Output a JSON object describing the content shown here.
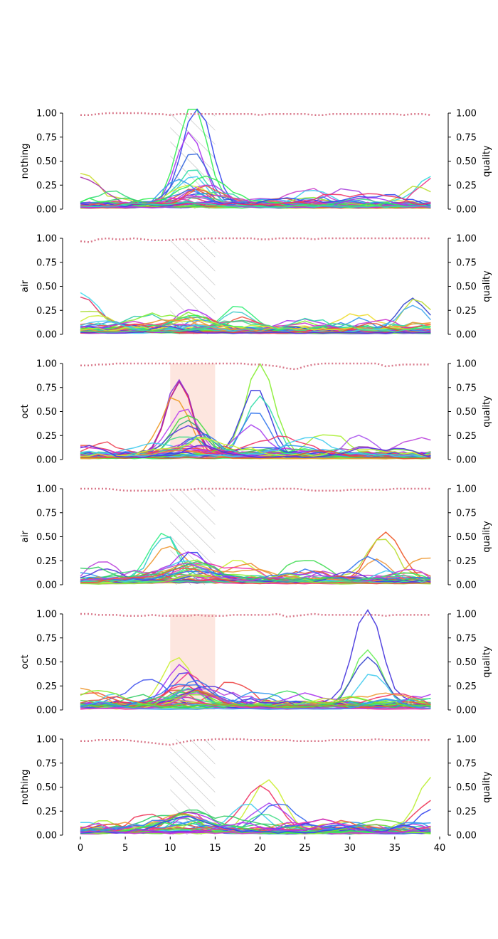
{
  "chart_data": {
    "type": "line",
    "layout": "stacked-subplots",
    "n_series": 40,
    "x_range": [
      0,
      40
    ],
    "x_ticks": [
      0,
      5,
      10,
      15,
      20,
      25,
      30,
      35,
      40
    ],
    "left_ylim": [
      0,
      1
    ],
    "right_ylim": [
      0,
      1
    ],
    "y_ticks": [
      "0.00",
      "0.25",
      "0.50",
      "0.75",
      "1.00"
    ],
    "right_axis_label": "quality",
    "quality_line_color": "#d9798b",
    "hatch_color": "#bbbbbb",
    "highlight_color": "#fde6df",
    "panels": [
      {
        "ylabel": "nothing",
        "stimulus": {
          "x0": 10,
          "x1": 15,
          "style": "hatched"
        },
        "quality": [
          0.98,
          0.98,
          0.99,
          1.0,
          1.0,
          1.0,
          1.0,
          1.0,
          0.99,
          0.99,
          0.98,
          0.99,
          0.99,
          0.99,
          0.99,
          0.99,
          0.99,
          0.99,
          0.99,
          0.99,
          0.98,
          0.99,
          0.99,
          0.99,
          0.99,
          0.99,
          0.98,
          0.98,
          0.99,
          0.99,
          0.99,
          0.99,
          0.99,
          0.99,
          0.99,
          0.99,
          0.98,
          0.99,
          0.99,
          0.98
        ],
        "peaks": [
          {
            "center": 12.5,
            "width": 1.6,
            "amp": 1.05,
            "color": "#33ee55"
          },
          {
            "center": 13.0,
            "width": 1.6,
            "amp": 1.05,
            "color": "#3344ee"
          },
          {
            "center": 12.2,
            "width": 1.5,
            "amp": 0.75,
            "color": "#aa33ee"
          },
          {
            "center": 12.5,
            "width": 1.5,
            "amp": 0.55,
            "color": "#3366dd"
          },
          {
            "center": 12.5,
            "width": 1.6,
            "amp": 0.36,
            "color": "#33ddaa"
          },
          {
            "center": 12.5,
            "width": 1.5,
            "amp": 0.29,
            "color": "#44ccee"
          },
          {
            "center": 12.5,
            "width": 1.8,
            "amp": 0.18,
            "color": "#dd5533"
          },
          {
            "center": 0.0,
            "width": 2.0,
            "amp": 0.3,
            "color": "#ccdd33"
          },
          {
            "center": 0.0,
            "width": 2.0,
            "amp": 0.28,
            "color": "#aa33aa"
          },
          {
            "center": 39.0,
            "width": 1.5,
            "amp": 0.3,
            "color": "#33dddd"
          },
          {
            "center": 39.0,
            "width": 1.5,
            "amp": 0.25,
            "color": "#ee3388"
          },
          {
            "center": 29.5,
            "width": 2.0,
            "amp": 0.18,
            "color": "#aa44dd"
          },
          {
            "center": 25.5,
            "width": 2.0,
            "amp": 0.16,
            "color": "#cc44cc"
          },
          {
            "center": 37.5,
            "width": 1.8,
            "amp": 0.21,
            "color": "#bbdd33"
          },
          {
            "center": 3.5,
            "width": 2.0,
            "amp": 0.13,
            "color": "#33dd77"
          }
        ]
      },
      {
        "ylabel": "air",
        "stimulus": {
          "x0": 10,
          "x1": 15,
          "style": "hatched"
        },
        "quality": [
          0.97,
          0.96,
          0.99,
          1.0,
          0.99,
          0.99,
          1.0,
          0.99,
          0.98,
          0.98,
          0.98,
          0.99,
          0.99,
          0.99,
          1.0,
          1.0,
          1.0,
          1.0,
          1.0,
          1.0,
          0.99,
          0.99,
          1.0,
          1.0,
          1.0,
          1.0,
          0.99,
          1.0,
          1.0,
          1.0,
          1.0,
          1.0,
          1.0,
          1.0,
          1.0,
          1.0,
          1.0,
          1.0,
          1.0,
          1.0
        ],
        "peaks": [
          {
            "center": 0.0,
            "width": 2.0,
            "amp": 0.37,
            "color": "#44ddee"
          },
          {
            "center": 0.0,
            "width": 2.0,
            "amp": 0.32,
            "color": "#dd3366"
          },
          {
            "center": 12.5,
            "width": 2.0,
            "amp": 0.2,
            "color": "#aa33ee"
          },
          {
            "center": 17.5,
            "width": 1.8,
            "amp": 0.27,
            "color": "#33ee77"
          },
          {
            "center": 17.5,
            "width": 1.8,
            "amp": 0.22,
            "color": "#44cccc"
          },
          {
            "center": 31.0,
            "width": 2.2,
            "amp": 0.14,
            "color": "#eedd33"
          },
          {
            "center": 37.0,
            "width": 1.6,
            "amp": 0.33,
            "color": "#3344cc"
          },
          {
            "center": 37.5,
            "width": 1.6,
            "amp": 0.32,
            "color": "#bbdd33"
          },
          {
            "center": 37.0,
            "width": 1.6,
            "amp": 0.26,
            "color": "#44aaee"
          },
          {
            "center": 14.0,
            "width": 1.5,
            "amp": 0.15,
            "color": "#ee8833"
          },
          {
            "center": 7.5,
            "width": 2.0,
            "amp": 0.15,
            "color": "#33ccaa"
          },
          {
            "center": 1.0,
            "width": 2.0,
            "amp": 0.21,
            "color": "#aadd33"
          }
        ]
      },
      {
        "ylabel": "oct",
        "stimulus": {
          "x0": 10,
          "x1": 15,
          "style": "filled"
        },
        "quality": [
          0.98,
          0.98,
          0.99,
          0.99,
          1.0,
          1.0,
          1.0,
          1.0,
          1.0,
          1.0,
          1.0,
          1.0,
          1.0,
          1.0,
          1.0,
          1.0,
          1.0,
          1.0,
          1.0,
          0.99,
          0.99,
          0.98,
          0.97,
          0.95,
          0.94,
          0.97,
          0.99,
          1.0,
          1.0,
          1.0,
          1.0,
          1.0,
          1.0,
          1.0,
          0.97,
          0.98,
          0.99,
          0.99,
          0.99,
          0.99
        ],
        "peaks": [
          {
            "center": 11.0,
            "width": 1.4,
            "amp": 0.8,
            "color": "#ee3344"
          },
          {
            "center": 11.0,
            "width": 1.4,
            "amp": 0.79,
            "color": "#8833dd"
          },
          {
            "center": 11.0,
            "width": 1.4,
            "amp": 0.77,
            "color": "#aa22aa"
          },
          {
            "center": 10.5,
            "width": 1.5,
            "amp": 0.6,
            "color": "#ee9922"
          },
          {
            "center": 11.5,
            "width": 1.6,
            "amp": 0.48,
            "color": "#bb44ee"
          },
          {
            "center": 12.0,
            "width": 1.8,
            "amp": 0.42,
            "color": "#44dd44"
          },
          {
            "center": 12.0,
            "width": 1.8,
            "amp": 0.38,
            "color": "#33aa77"
          },
          {
            "center": 12.0,
            "width": 2.0,
            "amp": 0.31,
            "color": "#5533dd"
          },
          {
            "center": 20.0,
            "width": 1.6,
            "amp": 0.94,
            "color": "#88ee33"
          },
          {
            "center": 19.5,
            "width": 1.6,
            "amp": 0.72,
            "color": "#3333dd"
          },
          {
            "center": 20.0,
            "width": 1.6,
            "amp": 0.61,
            "color": "#33ddaa"
          },
          {
            "center": 19.5,
            "width": 1.5,
            "amp": 0.46,
            "color": "#3377ee"
          },
          {
            "center": 19.0,
            "width": 1.6,
            "amp": 0.3,
            "color": "#aa44ee"
          },
          {
            "center": 27.5,
            "width": 2.0,
            "amp": 0.22,
            "color": "#aaee33"
          },
          {
            "center": 31.0,
            "width": 1.6,
            "amp": 0.18,
            "color": "#aa55ee"
          },
          {
            "center": 2.5,
            "width": 1.8,
            "amp": 0.14,
            "color": "#ee4455"
          }
        ]
      },
      {
        "ylabel": "air",
        "stimulus": {
          "x0": 10,
          "x1": 15,
          "style": "hatched"
        },
        "quality": [
          1.0,
          1.0,
          1.0,
          1.0,
          0.99,
          0.98,
          0.98,
          0.98,
          0.98,
          0.98,
          0.99,
          0.99,
          0.99,
          1.0,
          1.0,
          1.0,
          1.0,
          1.0,
          1.0,
          0.99,
          0.99,
          1.0,
          1.0,
          1.0,
          1.0,
          0.99,
          0.98,
          0.98,
          0.98,
          0.98,
          0.99,
          0.99,
          0.99,
          0.99,
          0.99,
          1.0,
          1.0,
          1.0,
          1.0,
          1.0
        ],
        "peaks": [
          {
            "center": 9.2,
            "width": 1.6,
            "amp": 0.51,
            "color": "#33ee88"
          },
          {
            "center": 9.5,
            "width": 1.6,
            "amp": 0.44,
            "color": "#33cccc"
          },
          {
            "center": 10.0,
            "width": 1.8,
            "amp": 0.37,
            "color": "#ee9933"
          },
          {
            "center": 12.5,
            "width": 1.4,
            "amp": 0.33,
            "color": "#3344ee"
          },
          {
            "center": 2.5,
            "width": 1.5,
            "amp": 0.17,
            "color": "#bb44dd"
          },
          {
            "center": 17.5,
            "width": 2.0,
            "amp": 0.23,
            "color": "#ccee33"
          },
          {
            "center": 25.0,
            "width": 2.0,
            "amp": 0.22,
            "color": "#44dd55"
          },
          {
            "center": 34.0,
            "width": 1.8,
            "amp": 0.52,
            "color": "#ee5522"
          },
          {
            "center": 33.5,
            "width": 1.6,
            "amp": 0.44,
            "color": "#bbdd33"
          },
          {
            "center": 33.0,
            "width": 1.6,
            "amp": 0.24,
            "color": "#ee9944"
          },
          {
            "center": 38.5,
            "width": 2.0,
            "amp": 0.26,
            "color": "#ee9933"
          },
          {
            "center": 18.5,
            "width": 1.8,
            "amp": 0.17,
            "color": "#ee8833"
          }
        ]
      },
      {
        "ylabel": "oct",
        "stimulus": {
          "x0": 10,
          "x1": 15,
          "style": "filled"
        },
        "quality": [
          1.0,
          1.0,
          0.99,
          0.99,
          0.99,
          0.98,
          0.98,
          0.98,
          0.99,
          0.98,
          0.98,
          0.98,
          0.98,
          0.99,
          0.98,
          0.98,
          0.98,
          0.99,
          0.99,
          0.99,
          0.99,
          0.99,
          1.0,
          0.97,
          0.98,
          0.99,
          1.0,
          0.99,
          0.99,
          0.99,
          0.99,
          0.99,
          0.99,
          0.99,
          0.98,
          0.99,
          0.99,
          0.99,
          0.99,
          0.99
        ],
        "peaks": [
          {
            "center": 10.8,
            "width": 1.6,
            "amp": 0.51,
            "color": "#ccee33"
          },
          {
            "center": 11.2,
            "width": 1.6,
            "amp": 0.42,
            "color": "#aa33ee"
          },
          {
            "center": 11.5,
            "width": 1.6,
            "amp": 0.37,
            "color": "#5533ee"
          },
          {
            "center": 12.0,
            "width": 1.8,
            "amp": 0.3,
            "color": "#ee3388"
          },
          {
            "center": 7.5,
            "width": 2.0,
            "amp": 0.26,
            "color": "#4455ee"
          },
          {
            "center": 17.0,
            "width": 1.8,
            "amp": 0.24,
            "color": "#ee4444"
          },
          {
            "center": 23.0,
            "width": 1.8,
            "amp": 0.16,
            "color": "#44dd66"
          },
          {
            "center": 32.0,
            "width": 1.6,
            "amp": 1.0,
            "color": "#4433dd"
          },
          {
            "center": 32.0,
            "width": 1.6,
            "amp": 0.57,
            "color": "#66ee55"
          },
          {
            "center": 32.0,
            "width": 1.6,
            "amp": 0.52,
            "color": "#3344cc"
          },
          {
            "center": 32.5,
            "width": 1.6,
            "amp": 0.35,
            "color": "#44ccee"
          },
          {
            "center": 0.0,
            "width": 2.0,
            "amp": 0.18,
            "color": "#ee9933"
          },
          {
            "center": 1.5,
            "width": 1.8,
            "amp": 0.12,
            "color": "#ee5533"
          }
        ]
      },
      {
        "ylabel": "nothing",
        "stimulus": {
          "x0": 10,
          "x1": 15,
          "style": "hatched"
        },
        "quality": [
          0.98,
          0.98,
          0.99,
          0.99,
          0.99,
          0.99,
          0.98,
          0.97,
          0.96,
          0.95,
          0.94,
          0.96,
          0.98,
          0.99,
          0.99,
          1.0,
          1.0,
          1.0,
          1.0,
          0.99,
          0.99,
          0.99,
          0.99,
          0.99,
          0.98,
          0.98,
          0.98,
          0.98,
          0.99,
          0.99,
          0.99,
          0.99,
          0.99,
          1.0,
          0.99,
          0.99,
          0.99,
          0.99,
          0.99,
          0.99
        ],
        "peaks": [
          {
            "center": 20.8,
            "width": 1.8,
            "amp": 0.54,
            "color": "#ccee33"
          },
          {
            "center": 20.0,
            "width": 2.0,
            "amp": 0.47,
            "color": "#ee3366"
          },
          {
            "center": 18.5,
            "width": 1.8,
            "amp": 0.3,
            "color": "#44ccee"
          },
          {
            "center": 21.0,
            "width": 2.0,
            "amp": 0.28,
            "color": "#aa44ee"
          },
          {
            "center": 22.0,
            "width": 2.0,
            "amp": 0.26,
            "color": "#3366ee"
          },
          {
            "center": 7.5,
            "width": 1.8,
            "amp": 0.18,
            "color": "#ee3355"
          },
          {
            "center": 2.5,
            "width": 1.5,
            "amp": 0.14,
            "color": "#aaee33"
          },
          {
            "center": 39.0,
            "width": 1.5,
            "amp": 0.52,
            "color": "#bbee33"
          },
          {
            "center": 39.0,
            "width": 1.5,
            "amp": 0.29,
            "color": "#ee3355"
          },
          {
            "center": 39.0,
            "width": 1.5,
            "amp": 0.24,
            "color": "#3344ee"
          },
          {
            "center": 20.5,
            "width": 1.6,
            "amp": 0.18,
            "color": "#44dd88"
          },
          {
            "center": 27.0,
            "width": 2.0,
            "amp": 0.14,
            "color": "#5533dd"
          }
        ]
      }
    ]
  }
}
